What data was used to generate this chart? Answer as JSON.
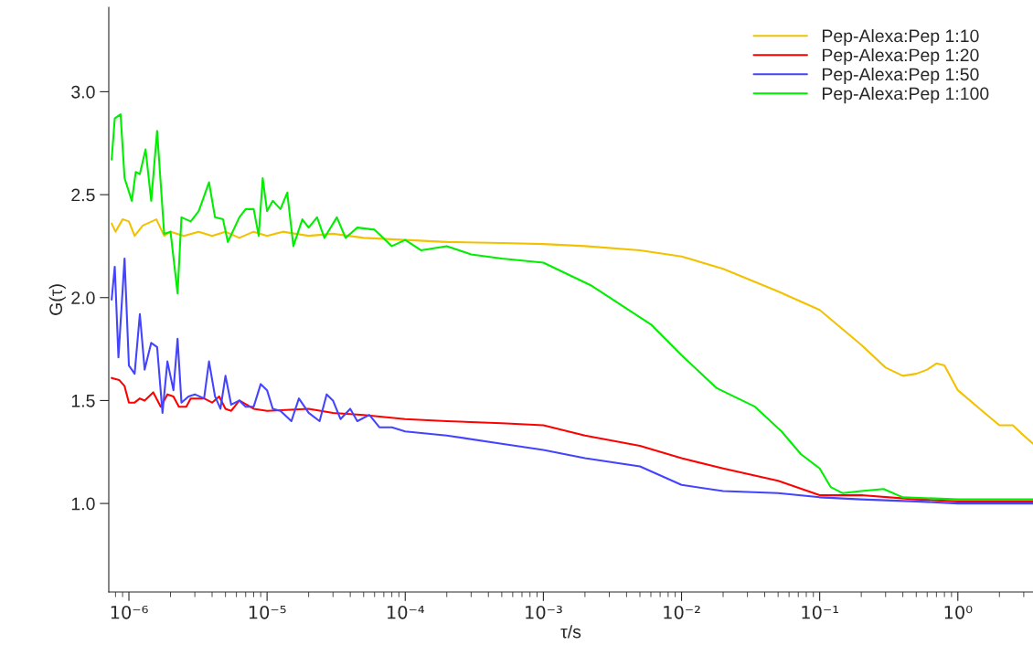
{
  "chart_data": {
    "type": "line",
    "xlabel": "τ/s",
    "ylabel": "G(τ)",
    "log": "x",
    "legend": "top right",
    "grid": false,
    "marker": "none",
    "line_style": "solid",
    "xlim": [
      7.15e-07,
      3.5
    ],
    "ylim": [
      0.57,
      3.41
    ],
    "xticks": [
      {
        "value": 1e-06,
        "label": "10⁻⁶"
      },
      {
        "value": 1e-05,
        "label": "10⁻⁵"
      },
      {
        "value": 0.0001,
        "label": "10⁻⁴"
      },
      {
        "value": 0.001,
        "label": "10⁻³"
      },
      {
        "value": 0.01,
        "label": "10⁻²"
      },
      {
        "value": 0.1,
        "label": "10⁻¹"
      },
      {
        "value": 1,
        "label": "10⁰"
      }
    ],
    "yticks": [
      {
        "value": 1.0,
        "label": "1.0"
      },
      {
        "value": 1.5,
        "label": "1.5"
      },
      {
        "value": 2.0,
        "label": "2.0"
      },
      {
        "value": 2.5,
        "label": "2.5"
      },
      {
        "value": 3.0,
        "label": "3.0"
      }
    ],
    "series": [
      {
        "name": "Pep-Alexa:Pep 1:10",
        "color": "#f2c200",
        "x": [
          7.5e-07,
          8e-07,
          9e-07,
          1e-06,
          1.1e-06,
          1.26e-06,
          1.58e-06,
          1.8e-06,
          2e-06,
          2.5e-06,
          3.2e-06,
          4e-06,
          5e-06,
          6.3e-06,
          8e-06,
          1e-05,
          1.3e-05,
          2e-05,
          3e-05,
          5e-05,
          0.0001,
          0.0002,
          0.0005,
          0.001,
          0.002,
          0.005,
          0.01,
          0.02,
          0.05,
          0.1,
          0.2,
          0.3,
          0.4,
          0.5,
          0.6,
          0.7,
          0.8,
          1,
          1.5,
          2,
          2.5,
          3,
          3.5
        ],
        "values": [
          2.36,
          2.32,
          2.38,
          2.37,
          2.3,
          2.35,
          2.38,
          2.3,
          2.32,
          2.3,
          2.32,
          2.3,
          2.32,
          2.29,
          2.32,
          2.3,
          2.32,
          2.3,
          2.31,
          2.29,
          2.28,
          2.27,
          2.265,
          2.26,
          2.25,
          2.23,
          2.2,
          2.14,
          2.03,
          1.94,
          1.77,
          1.66,
          1.62,
          1.63,
          1.65,
          1.68,
          1.67,
          1.55,
          1.45,
          1.38,
          1.38,
          1.33,
          1.29
        ]
      },
      {
        "name": "Pep-Alexa:Pep 1:20",
        "color": "#ff0000",
        "x": [
          7.5e-07,
          8.5e-07,
          9.3e-07,
          1e-06,
          1.1e-06,
          1.2e-06,
          1.3e-06,
          1.5e-06,
          1.7e-06,
          1.9e-06,
          2.1e-06,
          2.3e-06,
          2.6e-06,
          2.8e-06,
          3.5e-06,
          4e-06,
          4.5e-06,
          5e-06,
          5.5e-06,
          6.3e-06,
          8e-06,
          1e-05,
          2e-05,
          3e-05,
          5e-05,
          0.0001,
          0.0002,
          0.0005,
          0.001,
          0.002,
          0.005,
          0.01,
          0.02,
          0.05,
          0.1,
          0.2,
          0.5,
          1,
          3.5
        ],
        "values": [
          1.61,
          1.6,
          1.57,
          1.49,
          1.49,
          1.51,
          1.5,
          1.54,
          1.47,
          1.53,
          1.52,
          1.47,
          1.47,
          1.51,
          1.51,
          1.49,
          1.52,
          1.46,
          1.45,
          1.5,
          1.46,
          1.45,
          1.46,
          1.44,
          1.43,
          1.41,
          1.4,
          1.39,
          1.38,
          1.33,
          1.28,
          1.22,
          1.17,
          1.11,
          1.04,
          1.04,
          1.02,
          1.01,
          1.01
        ]
      },
      {
        "name": "Pep-Alexa:Pep 1:50",
        "color": "#4444ff",
        "x": [
          7.5e-07,
          7.9e-07,
          8.4e-07,
          9.3e-07,
          1e-06,
          1.1e-06,
          1.2e-06,
          1.3e-06,
          1.45e-06,
          1.6e-06,
          1.75e-06,
          1.9e-06,
          2.1e-06,
          2.25e-06,
          2.4e-06,
          2.7e-06,
          3e-06,
          3.5e-06,
          3.8e-06,
          4.2e-06,
          4.6e-06,
          5e-06,
          5.5e-06,
          6.3e-06,
          7e-06,
          8e-06,
          9e-06,
          1e-05,
          1.1e-05,
          1.25e-05,
          1.5e-05,
          1.7e-05,
          2e-05,
          2.4e-05,
          2.7e-05,
          3e-05,
          3.4e-05,
          4e-05,
          4.5e-05,
          5.5e-05,
          6.5e-05,
          8e-05,
          0.0001,
          0.0002,
          0.0005,
          0.001,
          0.002,
          0.005,
          0.01,
          0.02,
          0.05,
          0.1,
          0.2,
          0.5,
          1,
          3.5
        ],
        "values": [
          1.99,
          2.15,
          1.71,
          2.19,
          1.67,
          1.63,
          1.92,
          1.65,
          1.78,
          1.76,
          1.44,
          1.69,
          1.55,
          1.8,
          1.49,
          1.52,
          1.53,
          1.51,
          1.69,
          1.52,
          1.46,
          1.62,
          1.48,
          1.5,
          1.47,
          1.47,
          1.58,
          1.55,
          1.46,
          1.45,
          1.4,
          1.51,
          1.44,
          1.4,
          1.53,
          1.5,
          1.41,
          1.46,
          1.4,
          1.43,
          1.37,
          1.37,
          1.35,
          1.33,
          1.29,
          1.26,
          1.22,
          1.18,
          1.09,
          1.06,
          1.05,
          1.03,
          1.02,
          1.01,
          1.0,
          1.0
        ]
      },
      {
        "name": "Pep-Alexa:Pep 1:100",
        "color": "#00ee00",
        "x": [
          7.5e-07,
          7.9e-07,
          8.7e-07,
          9.3e-07,
          1.05e-06,
          1.12e-06,
          1.2e-06,
          1.32e-06,
          1.45e-06,
          1.6e-06,
          1.8e-06,
          2e-06,
          2.25e-06,
          2.4e-06,
          2.8e-06,
          3.2e-06,
          3.8e-06,
          4.2e-06,
          4.8e-06,
          5.2e-06,
          6.3e-06,
          7e-06,
          8e-06,
          8.7e-06,
          9.3e-06,
          1e-05,
          1.1e-05,
          1.25e-05,
          1.4e-05,
          1.55e-05,
          1.8e-05,
          2e-05,
          2.3e-05,
          2.6e-05,
          3.2e-05,
          3.7e-05,
          4.5e-05,
          6e-05,
          8e-05,
          0.0001,
          0.00013,
          0.0002,
          0.0003,
          0.0005,
          0.001,
          0.0022,
          0.006,
          0.01,
          0.018,
          0.034,
          0.053,
          0.073,
          0.1,
          0.12,
          0.147,
          0.2,
          0.29,
          0.4,
          1,
          2.4,
          3.5
        ],
        "values": [
          2.67,
          2.87,
          2.89,
          2.58,
          2.47,
          2.61,
          2.6,
          2.72,
          2.47,
          2.81,
          2.31,
          2.32,
          2.02,
          2.39,
          2.37,
          2.42,
          2.56,
          2.39,
          2.38,
          2.27,
          2.39,
          2.43,
          2.43,
          2.3,
          2.58,
          2.42,
          2.47,
          2.43,
          2.51,
          2.25,
          2.38,
          2.34,
          2.39,
          2.29,
          2.39,
          2.29,
          2.34,
          2.33,
          2.25,
          2.28,
          2.23,
          2.25,
          2.21,
          2.19,
          2.17,
          2.06,
          1.87,
          1.72,
          1.56,
          1.47,
          1.35,
          1.24,
          1.17,
          1.08,
          1.05,
          1.06,
          1.07,
          1.03,
          1.02,
          1.02,
          1.02
        ]
      }
    ]
  }
}
